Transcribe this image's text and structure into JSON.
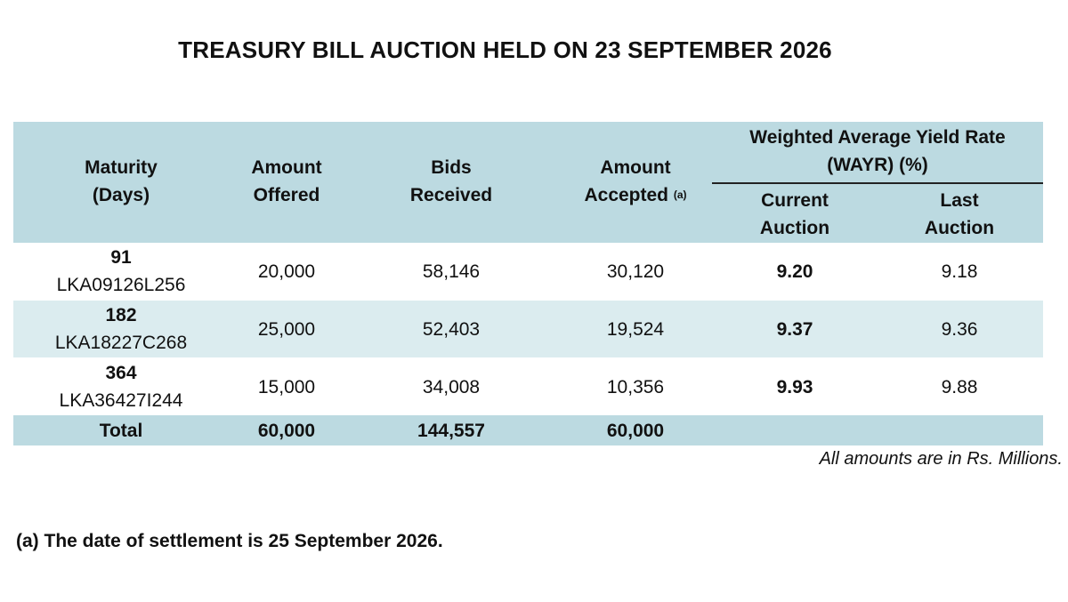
{
  "title": "TREASURY BILL AUCTION HELD ON 23 SEPTEMBER 2026",
  "headers": {
    "maturity": [
      "Maturity",
      "(Days)"
    ],
    "amount_offered": [
      "Amount",
      "Offered"
    ],
    "bids_received": [
      "Bids",
      "Received"
    ],
    "amount_accepted": [
      "Amount",
      "Accepted"
    ],
    "amount_accepted_note": "(a)",
    "wayr": [
      "Weighted Average Yield Rate",
      "(WAYR) (%)"
    ],
    "current_auction": [
      "Current",
      "Auction"
    ],
    "last_auction": [
      "Last",
      "Auction"
    ]
  },
  "rows": [
    {
      "days": "91",
      "isin": "LKA09126L256",
      "offered": "20,000",
      "bids": "58,146",
      "accepted": "30,120",
      "current": "9.20",
      "last": "9.18"
    },
    {
      "days": "182",
      "isin": "LKA18227C268",
      "offered": "25,000",
      "bids": "52,403",
      "accepted": "19,524",
      "current": "9.37",
      "last": "9.36"
    },
    {
      "days": "364",
      "isin": "LKA36427I244",
      "offered": "15,000",
      "bids": "34,008",
      "accepted": "10,356",
      "current": "9.93",
      "last": "9.88"
    }
  ],
  "total": {
    "label": "Total",
    "offered": "60,000",
    "bids": "144,557",
    "accepted": "60,000"
  },
  "unit_note": "All amounts are in Rs. Millions.",
  "footnote": "(a) The date of settlement is 25 September 2026."
}
